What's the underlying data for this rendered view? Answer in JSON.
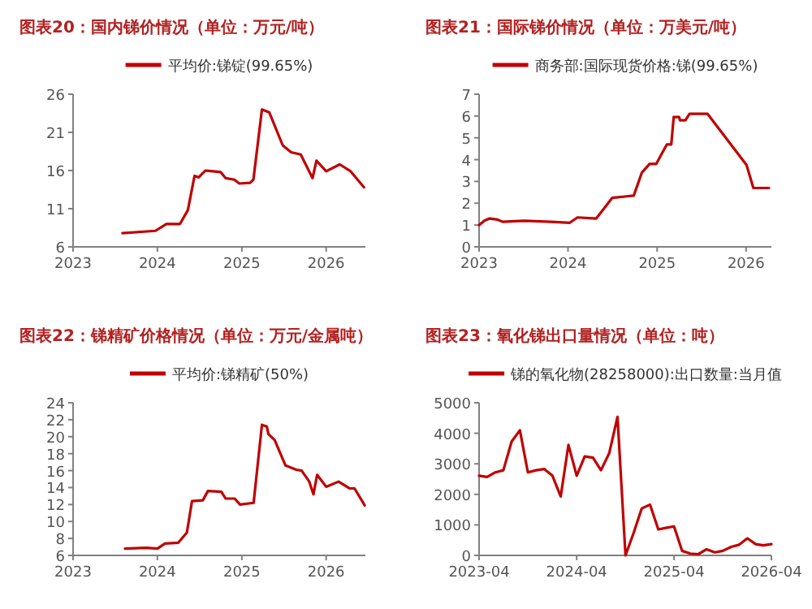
{
  "chart_data": [
    {
      "type": "line",
      "title": "图表20：国内锑价情况（单位：万元/吨）",
      "legend": "top",
      "x": [
        "2023-08-03",
        "2023-12-24",
        "2024-02-09",
        "2024-04-08",
        "2024-05-12",
        "2024-06-10",
        "2024-06-28",
        "2024-07-27",
        "2024-10-01",
        "2024-10-23",
        "2024-11-29",
        "2024-12-21",
        "2025-02-06",
        "2025-02-20",
        "2025-03-29",
        "2025-04-30",
        "2025-06-27",
        "2025-08-02",
        "2025-09-13",
        "2025-11-03",
        "2025-11-20",
        "2026-01-01",
        "2026-03-01",
        "2026-04-17",
        "2026-06-14"
      ],
      "series": [
        {
          "name": "平均价:锑锭(99.65%)",
          "color": "#c00000",
          "values": [
            7.8,
            8.1,
            9.0,
            9.0,
            10.8,
            15.3,
            15.1,
            16.0,
            15.8,
            15.0,
            14.8,
            14.3,
            14.4,
            14.8,
            24.0,
            23.6,
            19.3,
            18.4,
            18.1,
            15.0,
            17.3,
            15.9,
            16.8,
            15.9,
            13.8
          ]
        }
      ],
      "xlim": [
        "2023-01-01",
        "2026-06-20"
      ],
      "ylim": [
        6,
        26
      ],
      "xticks": [
        {
          "value": "2023-01-01",
          "label": "2023"
        },
        {
          "value": "2024-01-01",
          "label": "2024"
        },
        {
          "value": "2025-01-01",
          "label": "2025"
        },
        {
          "value": "2026-01-01",
          "label": "2026"
        }
      ],
      "yticks": [
        6,
        11,
        16,
        21,
        26
      ]
    },
    {
      "type": "line",
      "title": "图表21：国际锑价情况（单位：万美元/吨）",
      "legend": "top",
      "x": [
        "2023-01-01",
        "2023-01-23",
        "2023-02-13",
        "2023-03-17",
        "2023-04-08",
        "2023-07-05",
        "2023-10-22",
        "2024-01-07",
        "2024-02-09",
        "2024-04-26",
        "2024-07-01",
        "2024-08-14",
        "2024-09-27",
        "2024-10-30",
        "2024-12-01",
        "2024-12-28",
        "2025-02-10",
        "2025-02-28",
        "2025-03-10",
        "2025-04-01",
        "2025-04-05",
        "2025-04-27",
        "2025-05-14",
        "2025-07-27",
        "2026-01-03",
        "2026-01-31",
        "2026-03-03",
        "2026-04-05"
      ],
      "series": [
        {
          "name": "商务部:国际现货价格:锑(99.65%)",
          "color": "#c00000",
          "values": [
            1.0,
            1.2,
            1.3,
            1.25,
            1.15,
            1.2,
            1.15,
            1.1,
            1.35,
            1.3,
            2.25,
            2.3,
            2.35,
            3.4,
            3.8,
            3.8,
            4.7,
            4.7,
            5.95,
            5.95,
            5.8,
            5.8,
            6.1,
            6.1,
            3.75,
            2.7,
            2.7,
            2.7
          ]
        }
      ],
      "xlim": [
        "2023-01-01",
        "2026-04-15"
      ],
      "ylim": [
        0,
        7
      ],
      "xticks": [
        {
          "value": "2023-01-01",
          "label": "2023"
        },
        {
          "value": "2024-01-01",
          "label": "2024"
        },
        {
          "value": "2025-01-01",
          "label": "2025"
        },
        {
          "value": "2026-01-01",
          "label": "2026"
        }
      ],
      "yticks": [
        0,
        1,
        2,
        3,
        4,
        5,
        6,
        7
      ]
    },
    {
      "type": "line",
      "title": "图表22：锑精矿价格情况（单位：万元/金属吨）",
      "legend": "top",
      "x": [
        "2023-08-14",
        "2023-11-14",
        "2024-01-01",
        "2024-02-03",
        "2024-04-01",
        "2024-05-08",
        "2024-05-30",
        "2024-07-16",
        "2024-08-07",
        "2024-10-04",
        "2024-10-23",
        "2024-12-01",
        "2024-12-24",
        "2025-02-21",
        "2025-03-29",
        "2025-04-19",
        "2025-04-26",
        "2025-05-23",
        "2025-07-09",
        "2025-08-25",
        "2025-09-17",
        "2025-10-20",
        "2025-11-07",
        "2025-11-23",
        "2026-01-01",
        "2026-02-24",
        "2026-04-12",
        "2026-05-04",
        "2026-06-17"
      ],
      "series": [
        {
          "name": "平均价:锑精矿(50%)",
          "color": "#c00000",
          "values": [
            6.8,
            6.9,
            6.8,
            7.4,
            7.5,
            8.7,
            12.4,
            12.5,
            13.6,
            13.5,
            12.7,
            12.7,
            12.0,
            12.2,
            21.4,
            21.2,
            20.3,
            19.6,
            16.6,
            16.1,
            16.0,
            14.7,
            13.2,
            15.5,
            14.1,
            14.7,
            13.9,
            13.9,
            11.9
          ]
        }
      ],
      "xlim": [
        "2023-01-01",
        "2026-06-20"
      ],
      "ylim": [
        6,
        24
      ],
      "xticks": [
        {
          "value": "2023-01-01",
          "label": "2023"
        },
        {
          "value": "2024-01-01",
          "label": "2024"
        },
        {
          "value": "2025-01-01",
          "label": "2025"
        },
        {
          "value": "2026-01-01",
          "label": "2026"
        }
      ],
      "yticks": [
        6,
        8,
        10,
        12,
        14,
        16,
        18,
        20,
        22,
        24
      ]
    },
    {
      "type": "line",
      "title": "图表23：氧化锑出口量情况（单位：吨）",
      "legend": "top",
      "x": [
        "2023-04",
        "2023-05",
        "2023-06",
        "2023-07",
        "2023-08",
        "2023-09",
        "2023-10",
        "2023-11",
        "2023-12",
        "2024-01",
        "2024-02",
        "2024-03",
        "2024-04",
        "2024-05",
        "2024-06",
        "2024-07",
        "2024-08",
        "2024-09",
        "2024-10",
        "2024-11",
        "2024-12",
        "2025-01",
        "2025-02",
        "2025-03",
        "2025-04",
        "2025-05",
        "2025-06",
        "2025-07",
        "2025-08",
        "2025-09",
        "2025-10",
        "2025-11",
        "2025-12",
        "2026-01",
        "2026-02",
        "2026-03",
        "2026-04"
      ],
      "series": [
        {
          "name": "锑的氧化物(28258000):出口数量:当月值",
          "color": "#c00000",
          "values": [
            2610,
            2570,
            2720,
            2790,
            3730,
            4100,
            2720,
            2790,
            2830,
            2610,
            1930,
            3620,
            2610,
            3240,
            3200,
            2790,
            3350,
            4540,
            0,
            750,
            1540,
            1660,
            850,
            900,
            950,
            150,
            60,
            40,
            200,
            100,
            150,
            280,
            350,
            560,
            370,
            330,
            370
          ]
        }
      ],
      "xlim": [
        "2023-04",
        "2026-04"
      ],
      "ylim": [
        0,
        5000
      ],
      "xticks": [
        {
          "value": "2023-04",
          "label": "2023-04"
        },
        {
          "value": "2024-04",
          "label": "2024-04"
        },
        {
          "value": "2025-04",
          "label": "2025-04"
        },
        {
          "value": "2026-04",
          "label": "2026-04"
        }
      ],
      "yticks": [
        0,
        1000,
        2000,
        3000,
        4000,
        5000
      ]
    }
  ]
}
